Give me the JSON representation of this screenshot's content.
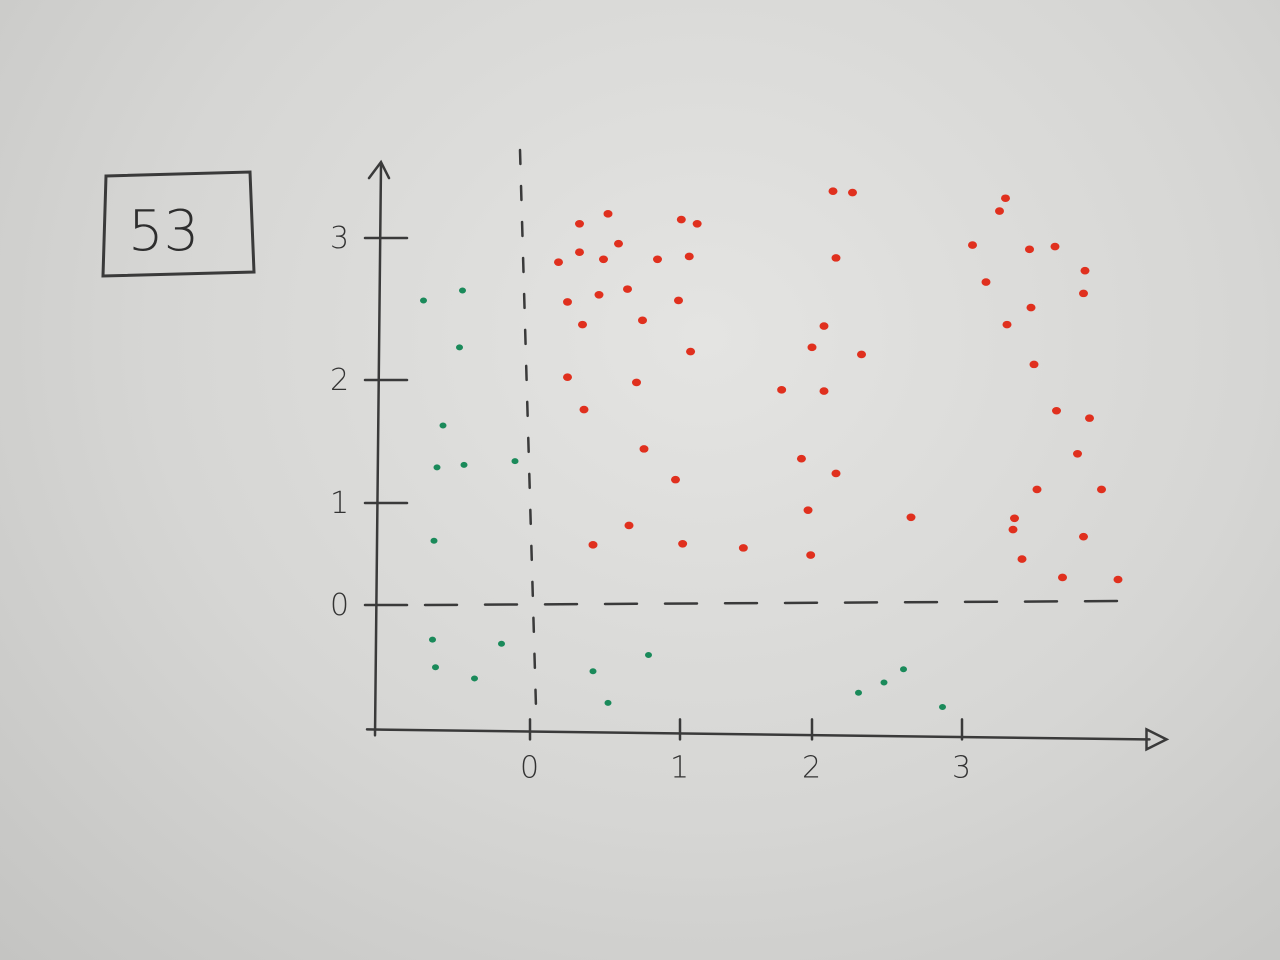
{
  "label_box": "53",
  "chart_data": {
    "type": "scatter",
    "title": "",
    "xlabel": "",
    "ylabel": "",
    "xlim": [
      -1.05,
      4.15
    ],
    "ylim": [
      -1.2,
      3.45
    ],
    "x_ticks": [
      "0",
      "1",
      "2",
      "3"
    ],
    "y_ticks": [
      "0",
      "1",
      "2",
      "3"
    ],
    "grid": false,
    "reference_lines": {
      "x_dashed": 0,
      "y_dashed": 0
    },
    "series": [
      {
        "color": "#e0301e",
        "points": [
          [
            0.52,
            3.17
          ],
          [
            0.33,
            3.1
          ],
          [
            1.01,
            3.13
          ],
          [
            1.13,
            3.1
          ],
          [
            0.59,
            2.96
          ],
          [
            0.33,
            2.9
          ],
          [
            0.19,
            2.83
          ],
          [
            0.49,
            2.85
          ],
          [
            0.85,
            2.85
          ],
          [
            1.07,
            2.87
          ],
          [
            0.25,
            2.55
          ],
          [
            0.46,
            2.6
          ],
          [
            0.65,
            2.64
          ],
          [
            0.99,
            2.56
          ],
          [
            0.35,
            2.39
          ],
          [
            0.75,
            2.42
          ],
          [
            1.08,
            2.2
          ],
          [
            0.25,
            2.02
          ],
          [
            0.71,
            1.98
          ],
          [
            0.36,
            1.76
          ],
          [
            0.76,
            1.44
          ],
          [
            0.97,
            1.19
          ],
          [
            0.66,
            0.78
          ],
          [
            0.42,
            0.59
          ],
          [
            1.02,
            0.6
          ],
          [
            1.48,
            0.56
          ],
          [
            2.14,
            3.33
          ],
          [
            2.27,
            3.32
          ],
          [
            2.16,
            2.86
          ],
          [
            2.08,
            2.38
          ],
          [
            2.0,
            2.23
          ],
          [
            1.77,
            1.92
          ],
          [
            2.08,
            1.91
          ],
          [
            2.33,
            2.18
          ],
          [
            1.92,
            1.36
          ],
          [
            2.16,
            1.24
          ],
          [
            1.97,
            0.93
          ],
          [
            1.99,
            0.49
          ],
          [
            2.66,
            0.86
          ],
          [
            3.29,
            3.28
          ],
          [
            3.25,
            3.19
          ],
          [
            3.07,
            2.95
          ],
          [
            3.45,
            2.92
          ],
          [
            3.62,
            2.94
          ],
          [
            3.82,
            2.77
          ],
          [
            3.16,
            2.69
          ],
          [
            3.81,
            2.61
          ],
          [
            3.46,
            2.51
          ],
          [
            3.3,
            2.39
          ],
          [
            3.48,
            2.11
          ],
          [
            3.63,
            1.75
          ],
          [
            3.85,
            1.69
          ],
          [
            3.77,
            1.4
          ],
          [
            3.5,
            1.11
          ],
          [
            3.93,
            1.11
          ],
          [
            3.35,
            0.85
          ],
          [
            3.34,
            0.74
          ],
          [
            3.81,
            0.67
          ],
          [
            3.4,
            0.45
          ],
          [
            3.67,
            0.27
          ],
          [
            4.04,
            0.25
          ]
        ]
      },
      {
        "color": "#1a8a5a",
        "points": [
          [
            -0.71,
            2.56
          ],
          [
            -0.45,
            2.63
          ],
          [
            -0.47,
            2.23
          ],
          [
            -0.58,
            1.63
          ],
          [
            -0.62,
            1.29
          ],
          [
            -0.44,
            1.31
          ],
          [
            -0.1,
            1.34
          ],
          [
            -0.64,
            0.63
          ],
          [
            -0.65,
            -0.34
          ],
          [
            -0.19,
            -0.38
          ],
          [
            -0.63,
            -0.61
          ],
          [
            -0.37,
            -0.72
          ],
          [
            0.42,
            -0.65
          ],
          [
            0.79,
            -0.49
          ],
          [
            0.52,
            -0.96
          ],
          [
            2.31,
            -0.86
          ],
          [
            2.48,
            -0.76
          ],
          [
            2.61,
            -0.63
          ],
          [
            2.87,
            -1.0
          ]
        ]
      }
    ]
  }
}
